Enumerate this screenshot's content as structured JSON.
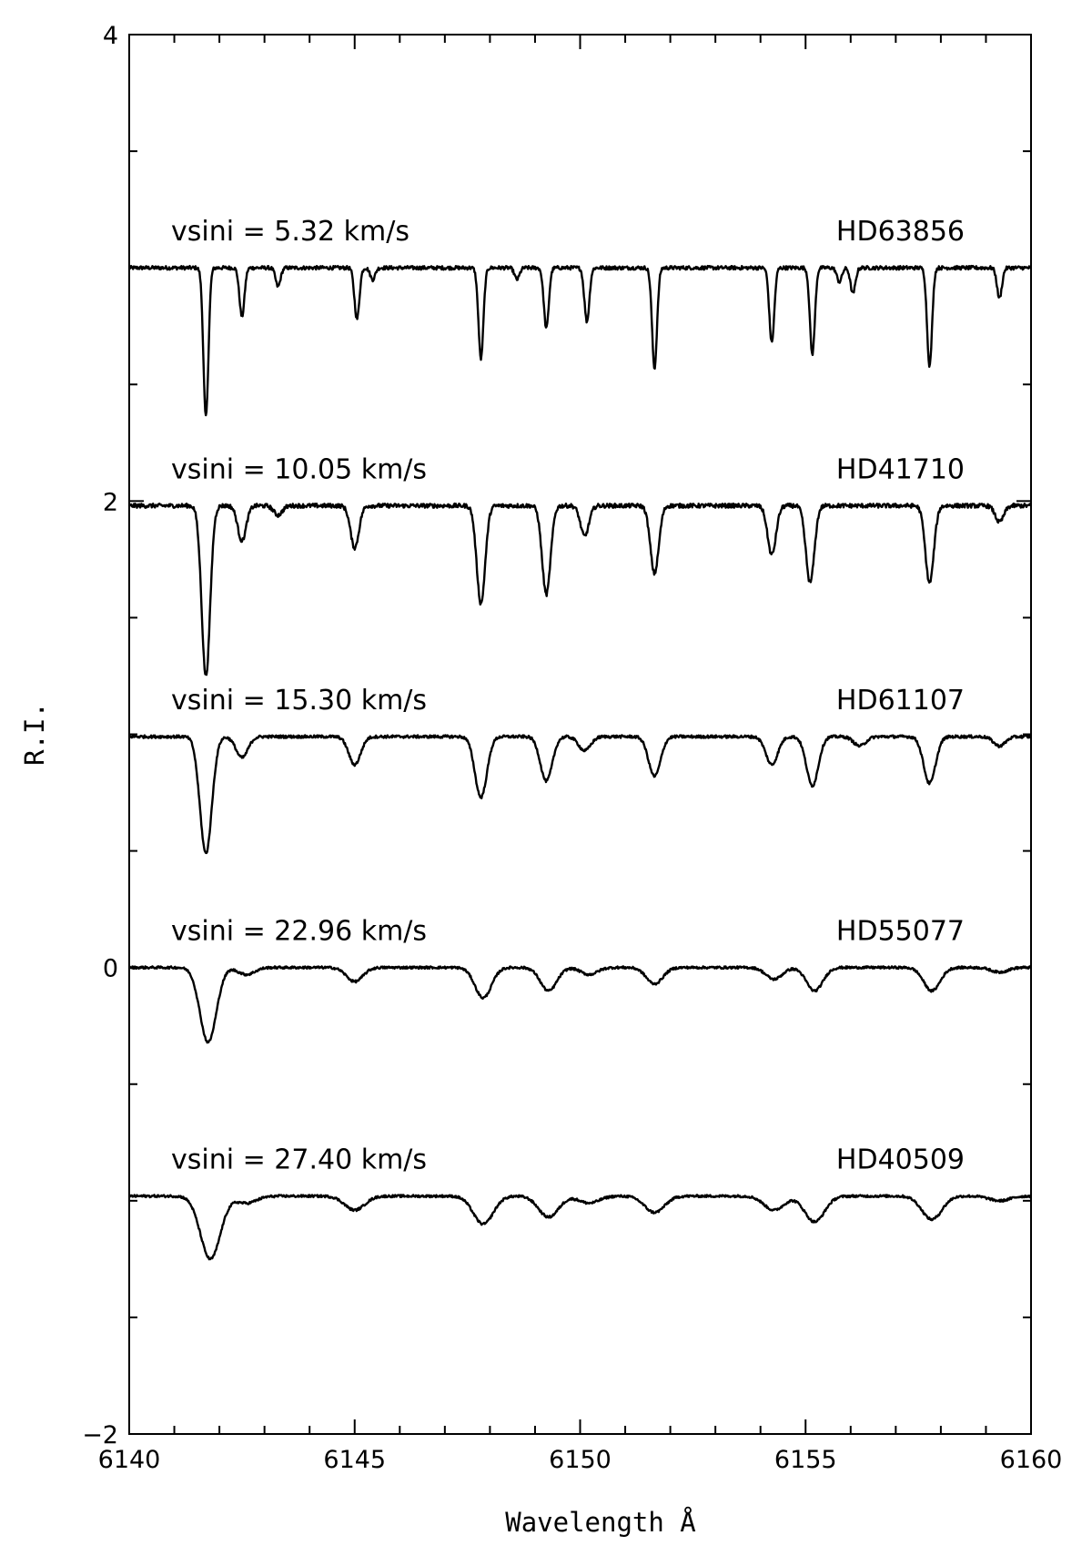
{
  "chart_data": {
    "type": "line",
    "title": "",
    "xlabel": "Wavelength Å",
    "ylabel": "R.I.",
    "xlim": [
      6140,
      6160
    ],
    "ylim": [
      -2,
      4
    ],
    "x_ticks": [
      6140,
      6145,
      6150,
      6155,
      6160
    ],
    "x_tick_labels": [
      "6140",
      "6145",
      "6150",
      "6155",
      "6160"
    ],
    "x_minor_step": 1,
    "y_ticks": [
      -2,
      0,
      2,
      4
    ],
    "y_tick_labels": [
      "−2",
      "0",
      "2",
      "4"
    ],
    "y_minor_step": 0.5,
    "grid": false,
    "line_color": "#000000",
    "series": [
      {
        "name": "HD63856",
        "vsini_label": "vsini = 5.32 km/s",
        "continuum": 3.0,
        "width_scale": 1.0,
        "noise": 0.008,
        "lines": [
          {
            "center": 6141.7,
            "depth": 0.64
          },
          {
            "center": 6142.5,
            "depth": 0.21
          },
          {
            "center": 6143.3,
            "depth": 0.08
          },
          {
            "center": 6145.05,
            "depth": 0.22
          },
          {
            "center": 6145.4,
            "depth": 0.05
          },
          {
            "center": 6147.8,
            "depth": 0.39
          },
          {
            "center": 6148.6,
            "depth": 0.05
          },
          {
            "center": 6149.25,
            "depth": 0.26
          },
          {
            "center": 6150.15,
            "depth": 0.23
          },
          {
            "center": 6151.65,
            "depth": 0.43
          },
          {
            "center": 6154.25,
            "depth": 0.32
          },
          {
            "center": 6155.15,
            "depth": 0.37
          },
          {
            "center": 6155.75,
            "depth": 0.06
          },
          {
            "center": 6156.05,
            "depth": 0.11
          },
          {
            "center": 6157.75,
            "depth": 0.42
          },
          {
            "center": 6159.3,
            "depth": 0.13
          }
        ]
      },
      {
        "name": "HD41710",
        "vsini_label": "vsini = 10.05 km/s",
        "continuum": 1.98,
        "width_scale": 1.7,
        "noise": 0.009,
        "lines": [
          {
            "center": 6141.7,
            "depth": 0.73
          },
          {
            "center": 6142.5,
            "depth": 0.15
          },
          {
            "center": 6143.3,
            "depth": 0.04
          },
          {
            "center": 6145.0,
            "depth": 0.18
          },
          {
            "center": 6147.8,
            "depth": 0.42
          },
          {
            "center": 6149.25,
            "depth": 0.38
          },
          {
            "center": 6150.1,
            "depth": 0.13
          },
          {
            "center": 6151.65,
            "depth": 0.29
          },
          {
            "center": 6154.25,
            "depth": 0.21
          },
          {
            "center": 6155.1,
            "depth": 0.33
          },
          {
            "center": 6157.75,
            "depth": 0.33
          },
          {
            "center": 6159.3,
            "depth": 0.07
          }
        ]
      },
      {
        "name": "HD61107",
        "vsini_label": "vsini = 15.30 km/s",
        "continuum": 0.99,
        "width_scale": 2.4,
        "noise": 0.006,
        "lines": [
          {
            "center": 6141.7,
            "depth": 0.5
          },
          {
            "center": 6142.5,
            "depth": 0.09
          },
          {
            "center": 6145.0,
            "depth": 0.12
          },
          {
            "center": 6147.8,
            "depth": 0.26
          },
          {
            "center": 6149.25,
            "depth": 0.19
          },
          {
            "center": 6150.1,
            "depth": 0.06
          },
          {
            "center": 6151.65,
            "depth": 0.17
          },
          {
            "center": 6154.25,
            "depth": 0.12
          },
          {
            "center": 6155.15,
            "depth": 0.21
          },
          {
            "center": 6156.2,
            "depth": 0.04
          },
          {
            "center": 6157.75,
            "depth": 0.2
          },
          {
            "center": 6159.3,
            "depth": 0.04
          }
        ]
      },
      {
        "name": "HD55077",
        "vsini_label": "vsini = 22.96 km/s",
        "continuum": 0.0,
        "width_scale": 3.3,
        "noise": 0.005,
        "lines": [
          {
            "center": 6141.75,
            "depth": 0.32
          },
          {
            "center": 6142.6,
            "depth": 0.03
          },
          {
            "center": 6145.0,
            "depth": 0.06
          },
          {
            "center": 6147.85,
            "depth": 0.13
          },
          {
            "center": 6149.3,
            "depth": 0.1
          },
          {
            "center": 6150.2,
            "depth": 0.03
          },
          {
            "center": 6151.65,
            "depth": 0.07
          },
          {
            "center": 6154.3,
            "depth": 0.05
          },
          {
            "center": 6155.2,
            "depth": 0.1
          },
          {
            "center": 6157.8,
            "depth": 0.1
          },
          {
            "center": 6159.3,
            "depth": 0.02
          }
        ]
      },
      {
        "name": "HD40509",
        "vsini_label": "vsini = 27.40 km/s",
        "continuum": -0.98,
        "width_scale": 4.0,
        "noise": 0.005,
        "lines": [
          {
            "center": 6141.8,
            "depth": 0.27
          },
          {
            "center": 6142.6,
            "depth": 0.03
          },
          {
            "center": 6145.0,
            "depth": 0.06
          },
          {
            "center": 6147.85,
            "depth": 0.12
          },
          {
            "center": 6149.3,
            "depth": 0.09
          },
          {
            "center": 6150.2,
            "depth": 0.03
          },
          {
            "center": 6151.65,
            "depth": 0.07
          },
          {
            "center": 6154.3,
            "depth": 0.06
          },
          {
            "center": 6155.2,
            "depth": 0.11
          },
          {
            "center": 6157.8,
            "depth": 0.1
          },
          {
            "center": 6159.3,
            "depth": 0.02
          }
        ]
      }
    ]
  }
}
